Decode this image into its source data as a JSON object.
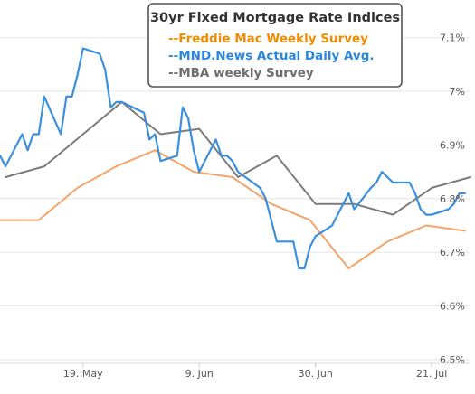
{
  "chart_data": {
    "type": "line",
    "title": "30yr Fixed Mortgage Rate Indices",
    "xlabel": "",
    "ylabel": "",
    "x_ticks": [
      "19. May",
      "9. Jun",
      "30. Jun",
      "21. Jul"
    ],
    "y_ticks": [
      "6.5%",
      "6.6%",
      "6.7%",
      "6.8%",
      "6.9%",
      "7%",
      "7.1%"
    ],
    "ylim": [
      6.5,
      7.17
    ],
    "xlim": [
      "2023-05-04",
      "2023-07-28"
    ],
    "grid": "horizontal",
    "legend_placement": "top-center",
    "series": [
      {
        "name": "--Freddie Mac Weekly Survey",
        "color": "#f4a469",
        "legend_color": "#f28c00",
        "x": [
          "2023-05-04",
          "2023-05-11",
          "2023-05-18",
          "2023-05-25",
          "2023-06-01",
          "2023-06-08",
          "2023-06-15",
          "2023-06-22",
          "2023-06-29",
          "2023-07-06",
          "2023-07-13",
          "2023-07-20",
          "2023-07-27"
        ],
        "values": [
          6.76,
          6.76,
          6.82,
          6.86,
          6.89,
          6.85,
          6.84,
          6.79,
          6.76,
          6.67,
          6.72,
          6.75,
          6.74
        ]
      },
      {
        "name": "--MND.News Actual Daily Avg.",
        "color": "#3c8fdd",
        "legend_color": "#2b86dd",
        "x": [
          "2023-05-04",
          "2023-05-05",
          "2023-05-08",
          "2023-05-09",
          "2023-05-10",
          "2023-05-11",
          "2023-05-12",
          "2023-05-15",
          "2023-05-16",
          "2023-05-17",
          "2023-05-18",
          "2023-05-19",
          "2023-05-22",
          "2023-05-23",
          "2023-05-24",
          "2023-05-25",
          "2023-05-26",
          "2023-05-30",
          "2023-05-31",
          "2023-06-01",
          "2023-06-02",
          "2023-06-05",
          "2023-06-06",
          "2023-06-07",
          "2023-06-08",
          "2023-06-09",
          "2023-06-12",
          "2023-06-13",
          "2023-06-14",
          "2023-06-15",
          "2023-06-16",
          "2023-06-20",
          "2023-06-21",
          "2023-06-22",
          "2023-06-23",
          "2023-06-26",
          "2023-06-27",
          "2023-06-28",
          "2023-06-29",
          "2023-06-30",
          "2023-07-03",
          "2023-07-05",
          "2023-07-06",
          "2023-07-07",
          "2023-07-10",
          "2023-07-11",
          "2023-07-12",
          "2023-07-13",
          "2023-07-14",
          "2023-07-17",
          "2023-07-18",
          "2023-07-19",
          "2023-07-20",
          "2023-07-21",
          "2023-07-24",
          "2023-07-25",
          "2023-07-26",
          "2023-07-27"
        ],
        "values": [
          6.88,
          6.86,
          6.92,
          6.89,
          6.92,
          6.92,
          6.99,
          6.92,
          6.99,
          6.99,
          7.03,
          7.08,
          7.07,
          7.04,
          6.97,
          6.98,
          6.98,
          6.96,
          6.91,
          6.92,
          6.87,
          6.88,
          6.97,
          6.95,
          6.89,
          6.85,
          6.91,
          6.88,
          6.88,
          6.87,
          6.85,
          6.82,
          6.8,
          6.76,
          6.72,
          6.72,
          6.67,
          6.67,
          6.71,
          6.73,
          6.75,
          6.79,
          6.81,
          6.78,
          6.82,
          6.83,
          6.85,
          6.84,
          6.83,
          6.83,
          6.81,
          6.78,
          6.77,
          6.77,
          6.78,
          6.79,
          6.81,
          6.81
        ]
      },
      {
        "name": "--MBA weekly Survey",
        "color": "#7b7b7b",
        "legend_color": "#6e6e6e",
        "x": [
          "2023-05-05",
          "2023-05-12",
          "2023-05-19",
          "2023-05-26",
          "2023-06-02",
          "2023-06-09",
          "2023-06-16",
          "2023-06-23",
          "2023-06-30",
          "2023-07-07",
          "2023-07-14",
          "2023-07-21",
          "2023-07-28"
        ],
        "values": [
          6.84,
          6.86,
          6.92,
          6.98,
          6.92,
          6.93,
          6.84,
          6.88,
          6.79,
          6.79,
          6.77,
          6.82,
          6.84
        ]
      }
    ]
  }
}
